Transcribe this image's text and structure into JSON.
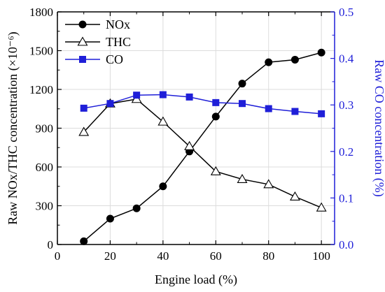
{
  "chart_data": {
    "type": "line",
    "title": "",
    "xlabel": "Engine load (%)",
    "ylabel_left": "Raw NOx/THC concentration (×10⁻⁶)",
    "ylabel_right": "Raw CO concentration (%)",
    "xlim": [
      0,
      105
    ],
    "ylim_left": [
      0,
      1800
    ],
    "ylim_right": [
      0,
      0.5
    ],
    "x_ticks": [
      "0",
      "20",
      "40",
      "60",
      "80",
      "100"
    ],
    "y_left_ticks": [
      "0",
      "300",
      "600",
      "900",
      "1200",
      "1500",
      "1800"
    ],
    "y_right_ticks": [
      "0.0",
      "0.1",
      "0.2",
      "0.3",
      "0.4",
      "0.5"
    ],
    "grid": true,
    "legend_position": "top-left",
    "x": [
      10,
      20,
      30,
      40,
      50,
      60,
      70,
      80,
      90,
      100
    ],
    "series": [
      {
        "name": "NOx",
        "axis": "left",
        "marker": "circle-filled",
        "color": "#000000",
        "values": [
          25,
          200,
          280,
          450,
          720,
          990,
          1245,
          1410,
          1430,
          1485
        ]
      },
      {
        "name": "THC",
        "axis": "left",
        "marker": "triangle-open",
        "color": "#000000",
        "values": [
          870,
          1090,
          1125,
          950,
          760,
          565,
          505,
          465,
          370,
          285
        ]
      },
      {
        "name": "CO",
        "axis": "right",
        "marker": "square-filled",
        "color": "#1f1fd8",
        "values": [
          0.293,
          0.303,
          0.321,
          0.322,
          0.317,
          0.305,
          0.303,
          0.292,
          0.286,
          0.281
        ]
      }
    ]
  }
}
